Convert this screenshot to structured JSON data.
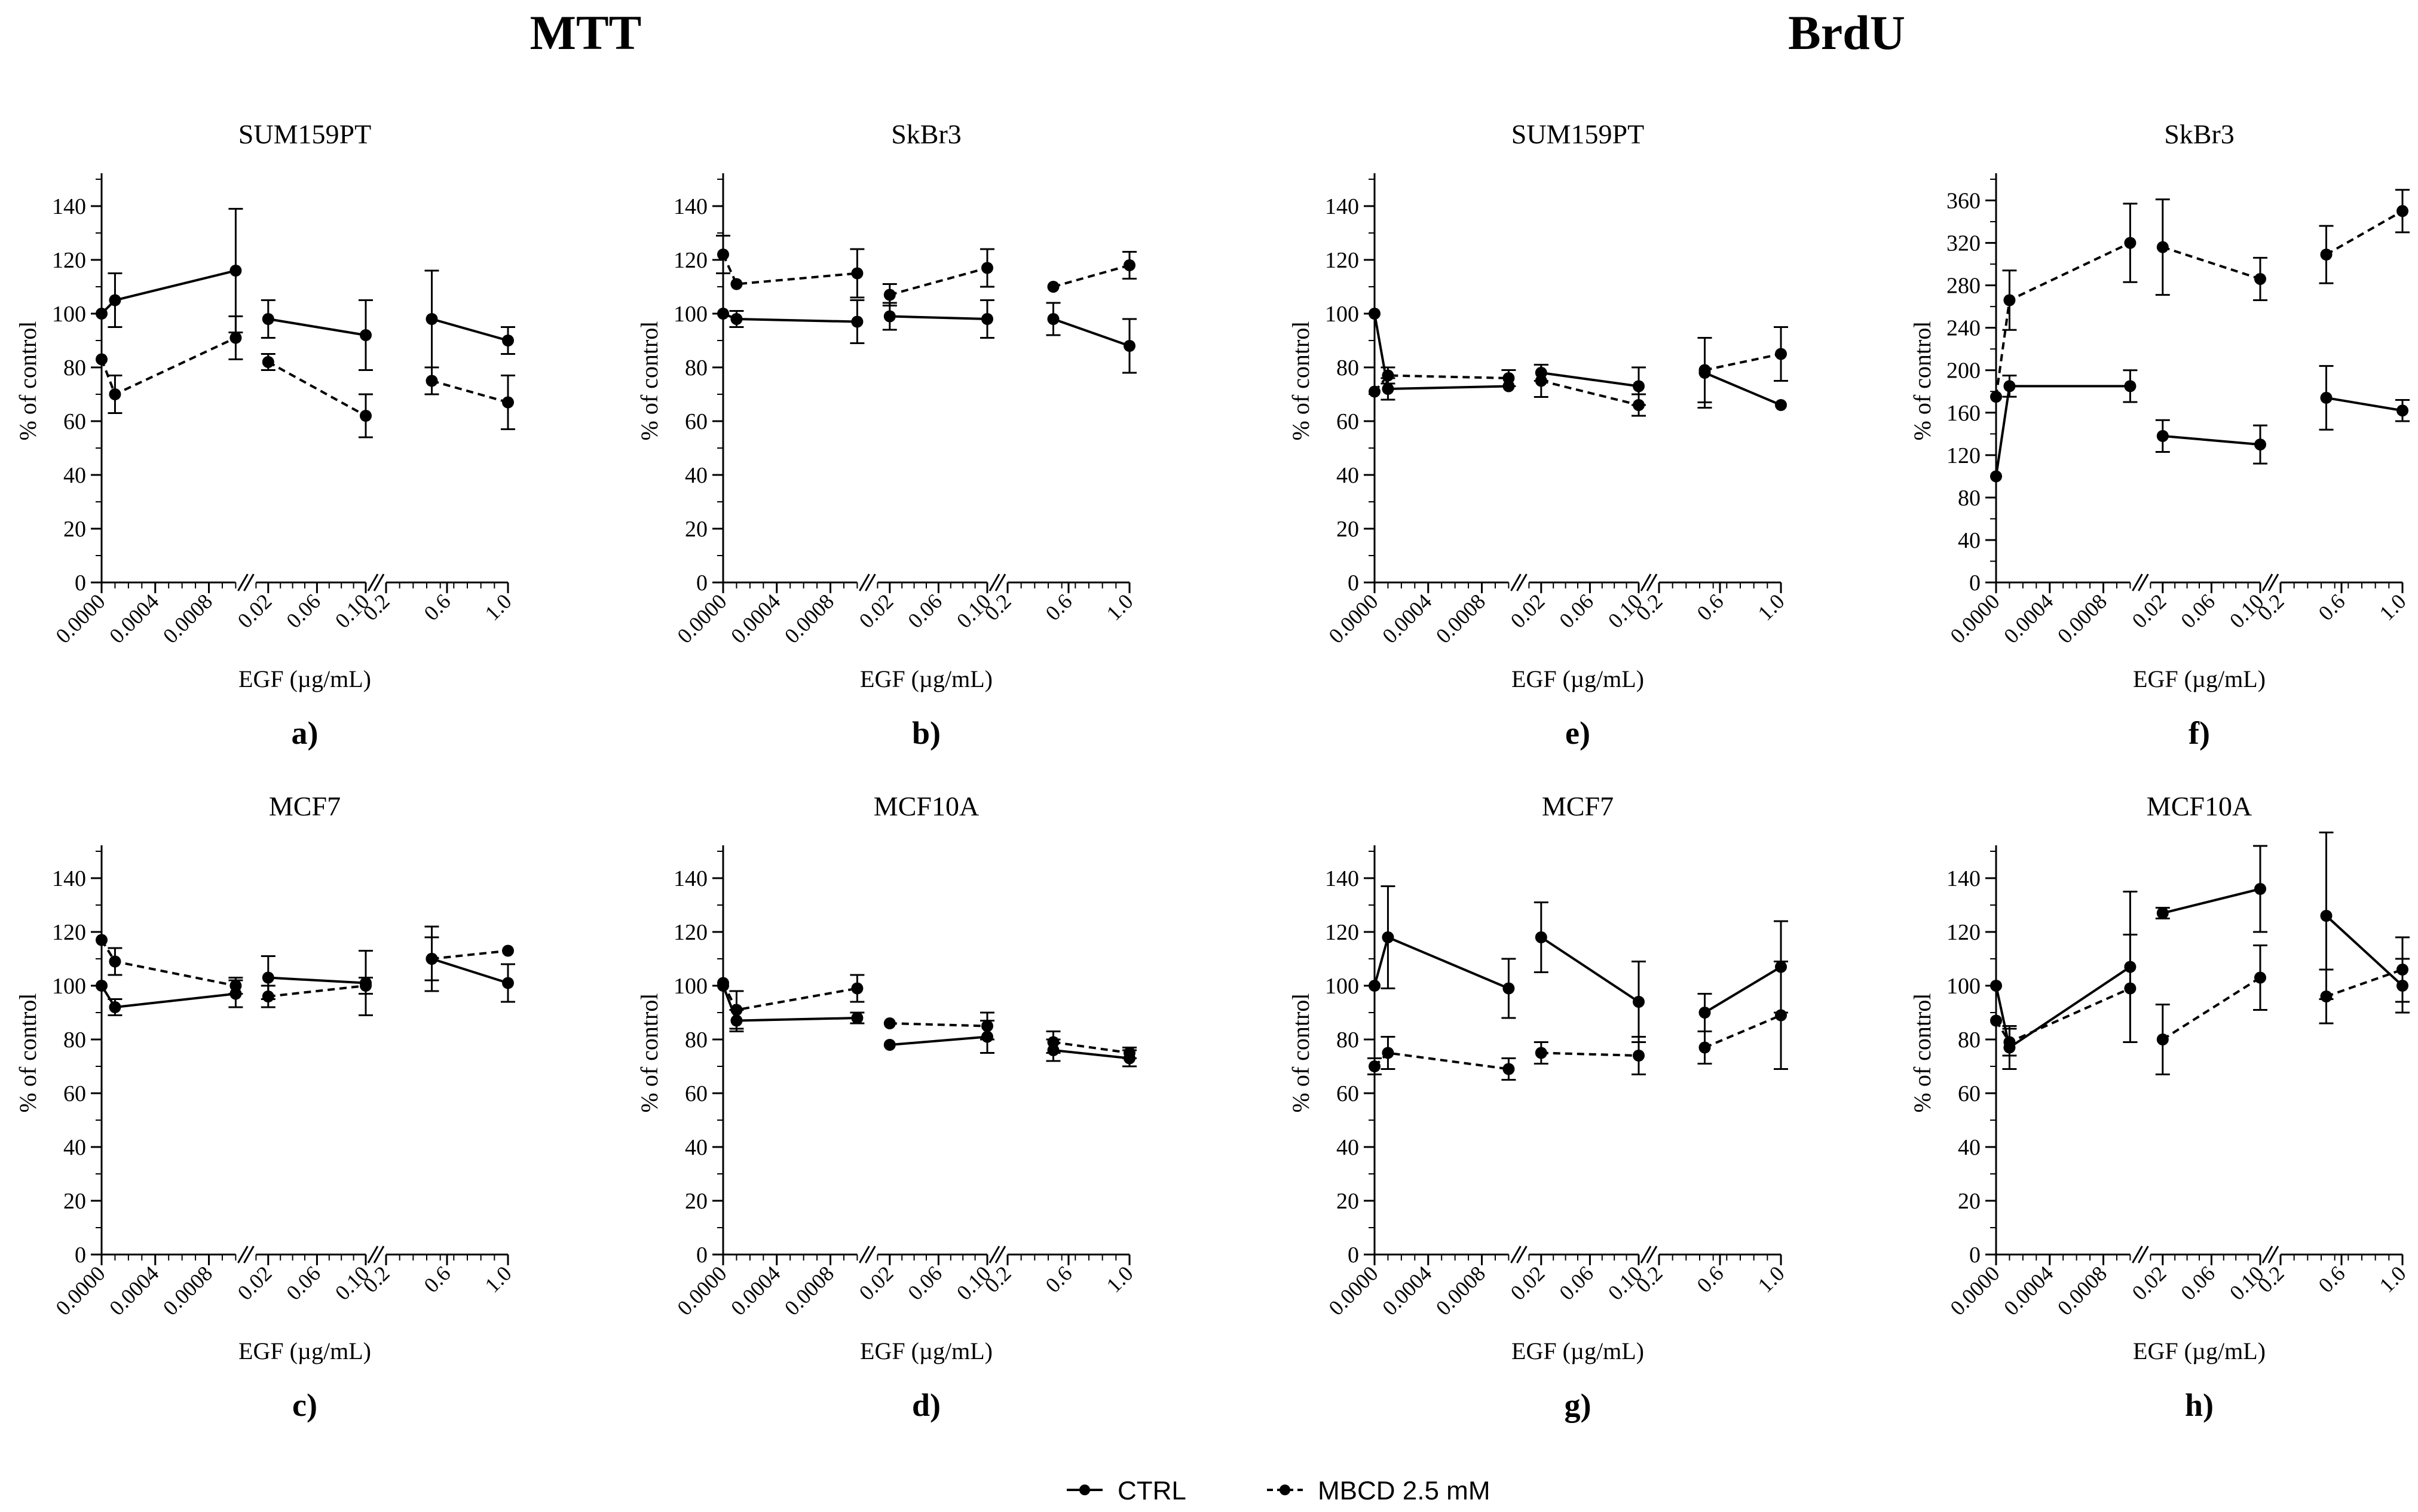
{
  "group_titles": {
    "mtt": "MTT",
    "brdu": "BrdU"
  },
  "legend": {
    "ctrl": "CTRL",
    "mbcd": "MBCD 2.5 mM"
  },
  "colors": {
    "line": "#000000",
    "background": "#ffffff"
  },
  "chart_data": [
    {
      "id": "a",
      "type": "line",
      "title": "SUM159PT",
      "letter": "a)",
      "xlabel": "EGF (µg/mL)",
      "ylabel": "% of control",
      "ylim": [
        0,
        150
      ],
      "yticks": [
        0,
        20,
        40,
        60,
        80,
        100,
        120,
        140
      ],
      "series": [
        {
          "name": "CTRL",
          "style": "solid",
          "segments": [
            [
              [
                0,
                100,
                0
              ],
              [
                0.0001,
                105,
                10
              ],
              [
                0.001,
                116,
                23
              ]
            ],
            [
              [
                0.02,
                98,
                7
              ],
              [
                0.1,
                92,
                13
              ]
            ],
            [
              [
                0.5,
                98,
                18
              ],
              [
                1.0,
                90,
                5
              ]
            ]
          ]
        },
        {
          "name": "MBCD 2.5 mM",
          "style": "dashed",
          "segments": [
            [
              [
                0,
                83,
                0
              ],
              [
                0.0001,
                70,
                7
              ],
              [
                0.001,
                91,
                8
              ]
            ],
            [
              [
                0.02,
                82,
                3
              ],
              [
                0.1,
                62,
                8
              ]
            ],
            [
              [
                0.5,
                75,
                5
              ],
              [
                1.0,
                67,
                10
              ]
            ]
          ]
        }
      ]
    },
    {
      "id": "b",
      "type": "line",
      "title": "SkBr3",
      "letter": "b)",
      "xlabel": "EGF (µg/mL)",
      "ylabel": "% of control",
      "ylim": [
        0,
        150
      ],
      "yticks": [
        0,
        20,
        40,
        60,
        80,
        100,
        120,
        140
      ],
      "series": [
        {
          "name": "CTRL",
          "style": "solid",
          "segments": [
            [
              [
                0,
                100,
                0
              ],
              [
                0.0001,
                98,
                3
              ],
              [
                0.001,
                97,
                8
              ]
            ],
            [
              [
                0.02,
                99,
                5
              ],
              [
                0.1,
                98,
                7
              ]
            ],
            [
              [
                0.5,
                98,
                6
              ],
              [
                1.0,
                88,
                10
              ]
            ]
          ]
        },
        {
          "name": "MBCD 2.5 mM",
          "style": "dashed",
          "segments": [
            [
              [
                0,
                122,
                7
              ],
              [
                0.0001,
                111,
                0
              ],
              [
                0.001,
                115,
                9
              ]
            ],
            [
              [
                0.02,
                107,
                4
              ],
              [
                0.1,
                117,
                7
              ]
            ],
            [
              [
                0.5,
                110,
                0
              ],
              [
                1.0,
                118,
                5
              ]
            ]
          ]
        }
      ]
    },
    {
      "id": "c",
      "type": "line",
      "title": "MCF7",
      "letter": "c)",
      "xlabel": "EGF (µg/mL)",
      "ylabel": "% of control",
      "ylim": [
        0,
        150
      ],
      "yticks": [
        0,
        20,
        40,
        60,
        80,
        100,
        120,
        140
      ],
      "series": [
        {
          "name": "CTRL",
          "style": "solid",
          "segments": [
            [
              [
                0,
                100,
                0
              ],
              [
                0.0001,
                92,
                3
              ],
              [
                0.001,
                97,
                5
              ]
            ],
            [
              [
                0.02,
                103,
                8
              ],
              [
                0.1,
                101,
                12
              ]
            ],
            [
              [
                0.5,
                110,
                12
              ],
              [
                1.0,
                101,
                7
              ]
            ]
          ]
        },
        {
          "name": "MBCD 2.5 mM",
          "style": "dashed",
          "segments": [
            [
              [
                0,
                117,
                0
              ],
              [
                0.0001,
                109,
                5
              ],
              [
                0.001,
                100,
                3
              ]
            ],
            [
              [
                0.02,
                96,
                4
              ],
              [
                0.1,
                100,
                3
              ]
            ],
            [
              [
                0.5,
                110,
                8
              ],
              [
                1.0,
                113,
                0
              ]
            ]
          ]
        }
      ]
    },
    {
      "id": "d",
      "type": "line",
      "title": "MCF10A",
      "letter": "d)",
      "xlabel": "EGF (µg/mL)",
      "ylabel": "% of control",
      "ylim": [
        0,
        150
      ],
      "yticks": [
        0,
        20,
        40,
        60,
        80,
        100,
        120,
        140
      ],
      "series": [
        {
          "name": "CTRL",
          "style": "solid",
          "segments": [
            [
              [
                0,
                100,
                0
              ],
              [
                0.0001,
                87,
                4
              ],
              [
                0.001,
                88,
                2
              ]
            ],
            [
              [
                0.02,
                78,
                0
              ],
              [
                0.1,
                81,
                6
              ]
            ],
            [
              [
                0.5,
                76,
                4
              ],
              [
                1.0,
                73,
                3
              ]
            ]
          ]
        },
        {
          "name": "MBCD 2.5 mM",
          "style": "dashed",
          "segments": [
            [
              [
                0,
                101,
                0
              ],
              [
                0.0001,
                91,
                7
              ],
              [
                0.001,
                99,
                5
              ]
            ],
            [
              [
                0.02,
                86,
                0
              ],
              [
                0.1,
                85,
                5
              ]
            ],
            [
              [
                0.5,
                79,
                4
              ],
              [
                1.0,
                75,
                2
              ]
            ]
          ]
        }
      ]
    },
    {
      "id": "e",
      "type": "line",
      "title": "SUM159PT",
      "letter": "e)",
      "xlabel": "EGF (µg/mL)",
      "ylabel": "% of control",
      "ylim": [
        0,
        150
      ],
      "yticks": [
        0,
        20,
        40,
        60,
        80,
        100,
        120,
        140
      ],
      "series": [
        {
          "name": "CTRL",
          "style": "solid",
          "segments": [
            [
              [
                0,
                100,
                0
              ],
              [
                0.0001,
                72,
                4
              ],
              [
                0.001,
                73,
                0
              ]
            ],
            [
              [
                0.02,
                78,
                3
              ],
              [
                0.1,
                73,
                7
              ]
            ],
            [
              [
                0.5,
                78,
                13
              ],
              [
                1.0,
                66,
                0
              ]
            ]
          ]
        },
        {
          "name": "MBCD 2.5 mM",
          "style": "dashed",
          "segments": [
            [
              [
                0,
                71,
                0
              ],
              [
                0.0001,
                77,
                3
              ],
              [
                0.001,
                76,
                3
              ]
            ],
            [
              [
                0.02,
                75,
                6
              ],
              [
                0.1,
                66,
                4
              ]
            ],
            [
              [
                0.5,
                79,
                12
              ],
              [
                1.0,
                85,
                10
              ]
            ]
          ]
        }
      ]
    },
    {
      "id": "f",
      "type": "line",
      "title": "SkBr3",
      "letter": "f)",
      "xlabel": "EGF (µg/mL)",
      "ylabel": "% of control",
      "ylim": [
        0,
        380
      ],
      "yticks": [
        0,
        40,
        80,
        120,
        160,
        200,
        240,
        280,
        320,
        360
      ],
      "series": [
        {
          "name": "CTRL",
          "style": "solid",
          "segments": [
            [
              [
                0,
                100,
                0
              ],
              [
                0.0001,
                185,
                10
              ],
              [
                0.001,
                185,
                15
              ]
            ],
            [
              [
                0.02,
                138,
                15
              ],
              [
                0.1,
                130,
                18
              ]
            ],
            [
              [
                0.5,
                174,
                30
              ],
              [
                1.0,
                162,
                10
              ]
            ]
          ]
        },
        {
          "name": "MBCD 2.5 mM",
          "style": "dashed",
          "segments": [
            [
              [
                0,
                175,
                0
              ],
              [
                0.0001,
                266,
                28
              ],
              [
                0.001,
                320,
                37
              ]
            ],
            [
              [
                0.02,
                316,
                45
              ],
              [
                0.1,
                286,
                20
              ]
            ],
            [
              [
                0.5,
                309,
                27
              ],
              [
                1.0,
                350,
                20
              ]
            ]
          ]
        }
      ]
    },
    {
      "id": "g",
      "type": "line",
      "title": "MCF7",
      "letter": "g)",
      "xlabel": "EGF (µg/mL)",
      "ylabel": "% of control",
      "ylim": [
        0,
        150
      ],
      "yticks": [
        0,
        20,
        40,
        60,
        80,
        100,
        120,
        140
      ],
      "series": [
        {
          "name": "CTRL",
          "style": "solid",
          "segments": [
            [
              [
                0,
                100,
                0
              ],
              [
                0.0001,
                118,
                19
              ],
              [
                0.001,
                99,
                11
              ]
            ],
            [
              [
                0.02,
                118,
                13
              ],
              [
                0.1,
                94,
                15
              ]
            ],
            [
              [
                0.5,
                90,
                7
              ],
              [
                1.0,
                107,
                17
              ]
            ]
          ]
        },
        {
          "name": "MBCD 2.5 mM",
          "style": "dashed",
          "segments": [
            [
              [
                0,
                70,
                3
              ],
              [
                0.0001,
                75,
                6
              ],
              [
                0.001,
                69,
                4
              ]
            ],
            [
              [
                0.02,
                75,
                4
              ],
              [
                0.1,
                74,
                7
              ]
            ],
            [
              [
                0.5,
                77,
                6
              ],
              [
                1.0,
                89,
                20
              ]
            ]
          ]
        }
      ]
    },
    {
      "id": "h",
      "type": "line",
      "title": "MCF10A",
      "letter": "h)",
      "xlabel": "EGF (µg/mL)",
      "ylabel": "% of control",
      "ylim": [
        0,
        150
      ],
      "yticks": [
        0,
        20,
        40,
        60,
        80,
        100,
        120,
        140
      ],
      "series": [
        {
          "name": "CTRL",
          "style": "solid",
          "segments": [
            [
              [
                0,
                100,
                0
              ],
              [
                0.0001,
                77,
                8
              ],
              [
                0.001,
                107,
                28
              ]
            ],
            [
              [
                0.02,
                127,
                2
              ],
              [
                0.1,
                136,
                16
              ]
            ],
            [
              [
                0.5,
                126,
                31
              ],
              [
                1.0,
                100,
                10
              ]
            ]
          ]
        },
        {
          "name": "MBCD 2.5 mM",
          "style": "dashed",
          "segments": [
            [
              [
                0,
                87,
                0
              ],
              [
                0.0001,
                79,
                5
              ],
              [
                0.001,
                99,
                20
              ]
            ],
            [
              [
                0.02,
                80,
                13
              ],
              [
                0.1,
                103,
                12
              ]
            ],
            [
              [
                0.5,
                96,
                10
              ],
              [
                1.0,
                106,
                12
              ]
            ]
          ]
        }
      ]
    }
  ],
  "x_axis": {
    "segment_ticks": [
      {
        "labels": [
          "0.0000",
          "0.0004",
          "0.0008"
        ],
        "values": [
          0,
          0.0004,
          0.0008
        ],
        "domain": [
          0,
          0.001
        ]
      },
      {
        "labels": [
          "0.02",
          "0.06",
          "0.10"
        ],
        "values": [
          0.02,
          0.06,
          0.1
        ],
        "domain": [
          0.01,
          0.1
        ]
      },
      {
        "labels": [
          "0.2",
          "0.6",
          "1.0"
        ],
        "values": [
          0.2,
          0.6,
          1.0
        ],
        "domain": [
          0.2,
          1.0
        ]
      }
    ]
  }
}
